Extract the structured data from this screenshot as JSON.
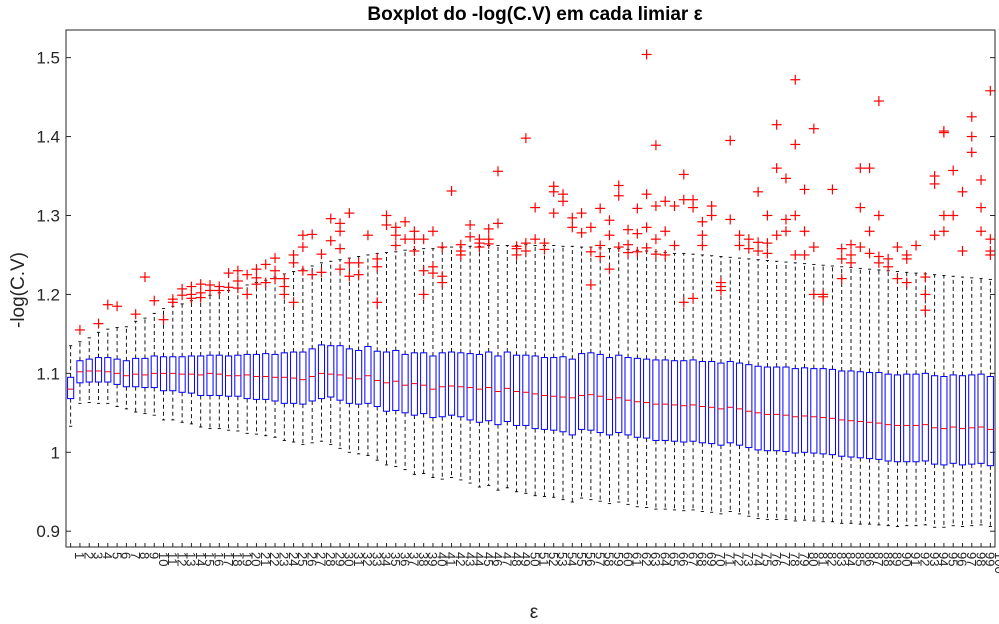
{
  "chart_data": {
    "type": "boxplot",
    "title": "Boxplot do -log(C.V) em cada limiar ε",
    "xlabel": "ε",
    "ylabel": "-log(C.V)",
    "ylim": [
      0.88,
      1.535
    ],
    "yticks": [
      0.9,
      1,
      1.1,
      1.2,
      1.3,
      1.4,
      1.5
    ],
    "ytick_labels": [
      "0.9",
      "1",
      "1.1",
      "1.2",
      "1.3",
      "1.4",
      "1.5"
    ],
    "x_start": 1,
    "x_end": 100,
    "grid": false,
    "colors": {
      "box": "#0000ff",
      "median": "#ff0000",
      "whisker": "#000000",
      "outlier": "#ff0000",
      "axis": "#262626"
    },
    "stats_by_epsilon": {
      "median": [
        1.08,
        1.102,
        1.103,
        1.103,
        1.102,
        1.1,
        1.097,
        1.099,
        1.098,
        1.1,
        1.1,
        1.1,
        1.099,
        1.099,
        1.098,
        1.1,
        1.099,
        1.097,
        1.097,
        1.098,
        1.096,
        1.096,
        1.095,
        1.095,
        1.094,
        1.092,
        1.096,
        1.1,
        1.099,
        1.098,
        1.094,
        1.093,
        1.097,
        1.091,
        1.088,
        1.09,
        1.085,
        1.087,
        1.085,
        1.08,
        1.083,
        1.084,
        1.083,
        1.082,
        1.08,
        1.082,
        1.077,
        1.081,
        1.077,
        1.076,
        1.074,
        1.072,
        1.071,
        1.07,
        1.069,
        1.072,
        1.073,
        1.071,
        1.067,
        1.069,
        1.066,
        1.064,
        1.063,
        1.061,
        1.061,
        1.06,
        1.059,
        1.06,
        1.058,
        1.057,
        1.055,
        1.057,
        1.055,
        1.052,
        1.05,
        1.048,
        1.048,
        1.047,
        1.045,
        1.046,
        1.045,
        1.044,
        1.043,
        1.041,
        1.04,
        1.039,
        1.038,
        1.037,
        1.035,
        1.034,
        1.034,
        1.034,
        1.035,
        1.031,
        1.03,
        1.032,
        1.03,
        1.031,
        1.032,
        1.029
      ],
      "q1": [
        1.068,
        1.088,
        1.089,
        1.089,
        1.089,
        1.086,
        1.083,
        1.083,
        1.082,
        1.082,
        1.078,
        1.078,
        1.076,
        1.075,
        1.072,
        1.072,
        1.072,
        1.071,
        1.071,
        1.068,
        1.067,
        1.067,
        1.065,
        1.062,
        1.062,
        1.061,
        1.065,
        1.068,
        1.07,
        1.066,
        1.062,
        1.061,
        1.062,
        1.058,
        1.052,
        1.053,
        1.05,
        1.047,
        1.049,
        1.044,
        1.045,
        1.047,
        1.045,
        1.041,
        1.038,
        1.04,
        1.035,
        1.039,
        1.034,
        1.034,
        1.03,
        1.029,
        1.028,
        1.026,
        1.022,
        1.029,
        1.028,
        1.025,
        1.022,
        1.025,
        1.022,
        1.019,
        1.018,
        1.015,
        1.015,
        1.014,
        1.013,
        1.014,
        1.012,
        1.011,
        1.009,
        1.012,
        1.009,
        1.006,
        1.003,
        1.002,
        1.002,
        1.001,
        0.999,
        1,
        0.999,
        0.998,
        0.997,
        0.995,
        0.994,
        0.993,
        0.992,
        0.991,
        0.989,
        0.988,
        0.988,
        0.988,
        0.989,
        0.985,
        0.984,
        0.986,
        0.984,
        0.985,
        0.986,
        0.983
      ],
      "q3": [
        1.095,
        1.116,
        1.118,
        1.12,
        1.12,
        1.118,
        1.116,
        1.119,
        1.119,
        1.122,
        1.121,
        1.121,
        1.121,
        1.122,
        1.122,
        1.123,
        1.123,
        1.122,
        1.123,
        1.124,
        1.124,
        1.125,
        1.124,
        1.126,
        1.127,
        1.127,
        1.131,
        1.136,
        1.135,
        1.135,
        1.131,
        1.129,
        1.134,
        1.128,
        1.127,
        1.129,
        1.124,
        1.126,
        1.126,
        1.122,
        1.126,
        1.127,
        1.126,
        1.125,
        1.124,
        1.127,
        1.122,
        1.127,
        1.123,
        1.123,
        1.122,
        1.12,
        1.12,
        1.121,
        1.118,
        1.125,
        1.126,
        1.124,
        1.12,
        1.123,
        1.12,
        1.119,
        1.118,
        1.117,
        1.117,
        1.116,
        1.116,
        1.117,
        1.115,
        1.115,
        1.113,
        1.115,
        1.113,
        1.111,
        1.109,
        1.108,
        1.108,
        1.108,
        1.106,
        1.107,
        1.106,
        1.106,
        1.105,
        1.103,
        1.103,
        1.102,
        1.101,
        1.101,
        1.099,
        1.098,
        1.099,
        1.099,
        1.1,
        1.097,
        1.096,
        1.098,
        1.097,
        1.098,
        1.099,
        1.096
      ],
      "whisker_low": [
        1.033,
        1.062,
        1.063,
        1.062,
        1.062,
        1.058,
        1.055,
        1.051,
        1.049,
        1.047,
        1.041,
        1.041,
        1.038,
        1.036,
        1.032,
        1.03,
        1.03,
        1.028,
        1.027,
        1.024,
        1.023,
        1.021,
        1.019,
        1.015,
        1.013,
        1.01,
        1.012,
        1.014,
        1.01,
        1.005,
        1,
        0.998,
        0.996,
        0.99,
        0.984,
        0.982,
        0.978,
        0.972,
        0.973,
        0.968,
        0.966,
        0.968,
        0.965,
        0.961,
        0.956,
        0.958,
        0.952,
        0.955,
        0.95,
        0.948,
        0.945,
        0.944,
        0.943,
        0.94,
        0.937,
        0.942,
        0.94,
        0.938,
        0.935,
        0.937,
        0.934,
        0.931,
        0.93,
        0.928,
        0.928,
        0.927,
        0.926,
        0.927,
        0.925,
        0.924,
        0.922,
        0.925,
        0.922,
        0.919,
        0.916,
        0.915,
        0.915,
        0.915,
        0.913,
        0.914,
        0.913,
        0.912,
        0.912,
        0.91,
        0.91,
        0.909,
        0.909,
        0.908,
        0.907,
        0.906,
        0.907,
        0.907,
        0.908,
        0.905,
        0.905,
        0.907,
        0.906,
        0.907,
        0.908,
        0.906
      ],
      "whisker_high": [
        1.135,
        1.14,
        1.145,
        1.152,
        1.156,
        1.158,
        1.159,
        1.166,
        1.17,
        1.176,
        1.182,
        1.185,
        1.188,
        1.192,
        1.196,
        1.199,
        1.202,
        1.205,
        1.208,
        1.212,
        1.215,
        1.218,
        1.222,
        1.226,
        1.229,
        1.232,
        1.236,
        1.24,
        1.242,
        1.244,
        1.246,
        1.248,
        1.25,
        1.252,
        1.253,
        1.254,
        1.256,
        1.257,
        1.258,
        1.258,
        1.259,
        1.26,
        1.26,
        1.261,
        1.261,
        1.262,
        1.262,
        1.262,
        1.262,
        1.263,
        1.262,
        1.262,
        1.262,
        1.261,
        1.261,
        1.26,
        1.26,
        1.259,
        1.258,
        1.258,
        1.257,
        1.256,
        1.255,
        1.254,
        1.253,
        1.252,
        1.252,
        1.251,
        1.25,
        1.249,
        1.248,
        1.247,
        1.246,
        1.245,
        1.244,
        1.243,
        1.242,
        1.241,
        1.24,
        1.239,
        1.238,
        1.237,
        1.236,
        1.235,
        1.234,
        1.233,
        1.232,
        1.231,
        1.23,
        1.229,
        1.228,
        1.227,
        1.226,
        1.225,
        1.224,
        1.223,
        1.222,
        1.221,
        1.22,
        1.219
      ]
    },
    "outliers_by_epsilon": [
      [],
      [
        1.155
      ],
      [],
      [
        1.163
      ],
      [
        1.187
      ],
      [
        1.185
      ],
      [],
      [
        1.175
      ],
      [
        1.222
      ],
      [
        1.192
      ],
      [
        1.168
      ],
      [
        1.194,
        1.19
      ],
      [
        1.207,
        1.199
      ],
      [
        1.21,
        1.2,
        1.195
      ],
      [
        1.213,
        1.202,
        1.196
      ],
      [
        1.212,
        1.205
      ],
      [
        1.205,
        1.21
      ],
      [
        1.227,
        1.209
      ],
      [
        1.217,
        1.208,
        1.23
      ],
      [
        1.225,
        1.2
      ],
      [
        1.221,
        1.213,
        1.232
      ],
      [
        1.238,
        1.215
      ],
      [
        1.23,
        1.246,
        1.22
      ],
      [
        1.2,
        1.21,
        1.22
      ],
      [
        1.19,
        1.24,
        1.25
      ],
      [
        1.275,
        1.26,
        1.23
      ],
      [
        1.276,
        1.225
      ],
      [
        1.251,
        1.228
      ],
      [
        1.296,
        1.268
      ],
      [
        1.29,
        1.28,
        1.258,
        1.232
      ],
      [
        1.303,
        1.24,
        1.223
      ],
      [
        1.24,
        1.225
      ],
      [
        1.275
      ],
      [
        1.19,
        1.245,
        1.235
      ],
      [
        1.3,
        1.288
      ],
      [
        1.285,
        1.275,
        1.262
      ],
      [
        1.292,
        1.27
      ],
      [
        1.28,
        1.27,
        1.255
      ],
      [
        1.2,
        1.23,
        1.27
      ],
      [
        1.28,
        1.235,
        1.227
      ],
      [
        1.215,
        1.223,
        1.26
      ],
      [
        1.331
      ],
      [
        1.263,
        1.255,
        1.25
      ],
      [
        1.288,
        1.273
      ],
      [
        1.26,
        1.265,
        1.27
      ],
      [
        1.283,
        1.27,
        1.264
      ],
      [
        1.356,
        1.29
      ],
      [],
      [
        1.261,
        1.25,
        1.258
      ],
      [
        1.398,
        1.265,
        1.255
      ],
      [
        1.31,
        1.27
      ],
      [
        1.257,
        1.265
      ],
      [
        1.33,
        1.337,
        1.303
      ],
      [
        1.327,
        1.318
      ],
      [
        1.297,
        1.285
      ],
      [
        1.303,
        1.278
      ],
      [
        1.285,
        1.254,
        1.212
      ],
      [
        1.309,
        1.262,
        1.248
      ],
      [
        1.294,
        1.275,
        1.232
      ],
      [
        1.338,
        1.325,
        1.26
      ],
      [
        1.282,
        1.263,
        1.253
      ],
      [
        1.309,
        1.277,
        1.254
      ],
      [
        1.504,
        1.327,
        1.285,
        1.259
      ],
      [
        1.389,
        1.312,
        1.251,
        1.27
      ],
      [
        1.318,
        1.28,
        1.25
      ],
      [
        1.312,
        1.262
      ],
      [
        1.352,
        1.32,
        1.19
      ],
      [
        1.32,
        1.31,
        1.195
      ],
      [
        1.292,
        1.275,
        1.262
      ],
      [
        1.312,
        1.3
      ],
      [
        1.205,
        1.21,
        1.215
      ],
      [
        1.395,
        1.295
      ],
      [
        1.275,
        1.262
      ],
      [
        1.27,
        1.258
      ],
      [
        1.33,
        1.266,
        1.255
      ],
      [
        1.3,
        1.265,
        1.252
      ],
      [
        1.415,
        1.36,
        1.275
      ],
      [
        1.347,
        1.295,
        1.28
      ],
      [
        1.472,
        1.39,
        1.3,
        1.25
      ],
      [
        1.333,
        1.28,
        1.25
      ],
      [
        1.41,
        1.26,
        1.2
      ],
      [
        1.197,
        1.2
      ],
      [
        1.333
      ],
      [
        1.258,
        1.245,
        1.22
      ],
      [
        1.24,
        1.25,
        1.263
      ],
      [
        1.36,
        1.31,
        1.26
      ],
      [
        1.36,
        1.28,
        1.252
      ],
      [
        1.445,
        1.3,
        1.248,
        1.24
      ],
      [
        1.235,
        1.245
      ],
      [
        1.26,
        1.22
      ],
      [
        1.25,
        1.245,
        1.215
      ],
      [
        1.262
      ],
      [
        1.222,
        1.2,
        1.18
      ],
      [
        1.35,
        1.34,
        1.275
      ],
      [
        1.405,
        1.407,
        1.3,
        1.28
      ],
      [
        1.357,
        1.3
      ],
      [
        1.33,
        1.255
      ],
      [
        1.425,
        1.4,
        1.38
      ],
      [
        1.345,
        1.31,
        1.28
      ],
      [
        1.458,
        1.27,
        1.255,
        1.25
      ]
    ]
  }
}
